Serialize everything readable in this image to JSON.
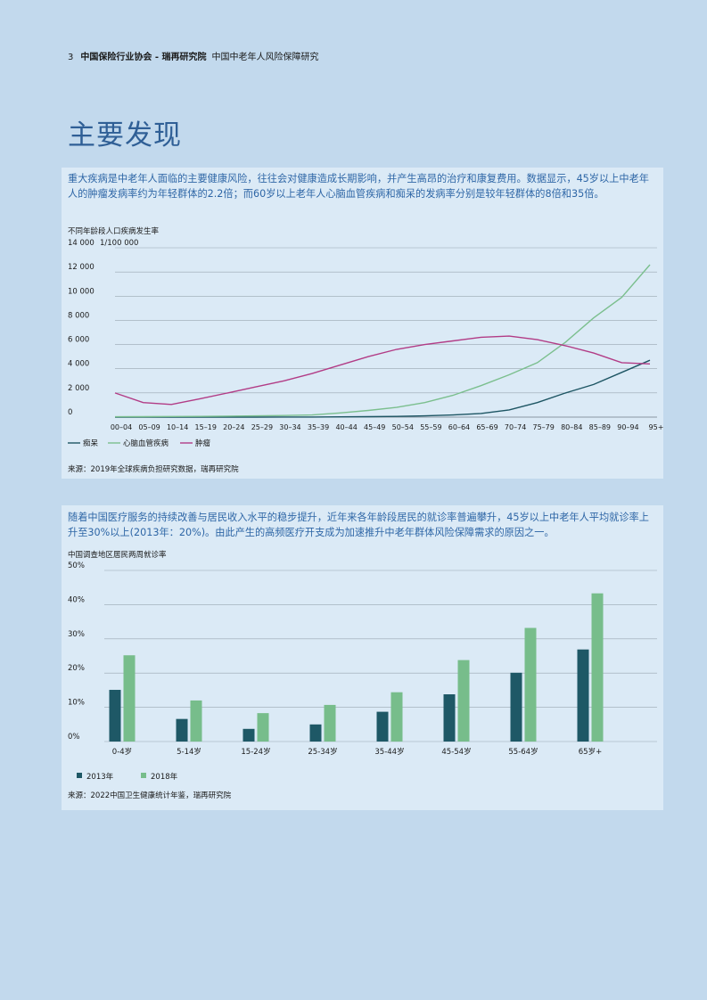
{
  "header": {
    "page_number": "3",
    "org": "中国保险行业协会 - 瑞再研究院",
    "report": "中国中老年人风险保障研究"
  },
  "title": "主要发现",
  "panel1": {
    "intro": "重大疾病是中老年人面临的主要健康风险，往往会对健康造成长期影响，并产生高昂的治疗和康复费用。数据显示，45岁以上中老年人的肿瘤发病率约为年轻群体的2.2倍；而60岁以上老年人心脑血管疾病和痴呆的发病率分别是较年轻群体的8倍和35倍。",
    "chart_title": "不同年龄段人口疾病发生率",
    "unit": "1/100 000",
    "source": "来源：2019年全球疾病负担研究数据，瑞再研究院"
  },
  "panel2": {
    "intro": "随着中国医疗服务的持续改善与居民收入水平的稳步提升，近年来各年龄段居民的就诊率普遍攀升，45岁以上中老年人平均就诊率上升至30%以上(2013年：20%)。由此产生的高频医疗开支成为加速推升中老年群体风险保障需求的原因之一。",
    "chart_title": "中国调查地区居民两周就诊率",
    "source": "来源：2022中国卫生健康统计年鉴，瑞再研究院"
  },
  "chart_data": [
    {
      "type": "line",
      "title": "不同年龄段人口疾病发生率",
      "ylabel": "1/100 000",
      "ylim": [
        0,
        14000
      ],
      "yticks": [
        0,
        2000,
        4000,
        6000,
        8000,
        10000,
        12000,
        14000
      ],
      "ytick_labels": [
        "0",
        "2 000",
        "4 000",
        "6 000",
        "8 000",
        "10 000",
        "12 000",
        "14 000"
      ],
      "grid": true,
      "legend": "bottom-left",
      "x": [
        "00–04",
        "05–09",
        "10–14",
        "15–19",
        "20–24",
        "25–29",
        "30–34",
        "35–39",
        "40–44",
        "45–49",
        "50–54",
        "55–59",
        "60–64",
        "65–69",
        "70–74",
        "75–79",
        "80–84",
        "85–89",
        "90–94",
        "95+"
      ],
      "series": [
        {
          "name": "痴呆",
          "color": "#1d5563",
          "values": [
            0,
            0,
            0,
            0,
            0,
            0,
            5,
            10,
            20,
            40,
            60,
            100,
            180,
            300,
            600,
            1200,
            2000,
            2700,
            3700,
            4700
          ]
        },
        {
          "name": "心脑血管疾病",
          "color": "#7bbf8e",
          "values": [
            30,
            40,
            50,
            60,
            80,
            100,
            130,
            180,
            350,
            550,
            800,
            1200,
            1800,
            2600,
            3500,
            4500,
            6200,
            8200,
            9900,
            12600
          ]
        },
        {
          "name": "肿瘤",
          "color": "#b23c86",
          "values": [
            2000,
            1200,
            1050,
            1500,
            2000,
            2500,
            3000,
            3600,
            4300,
            5000,
            5600,
            6000,
            6300,
            6600,
            6700,
            6400,
            5900,
            5300,
            4500,
            4400
          ]
        }
      ]
    },
    {
      "type": "bar",
      "title": "中国调查地区居民两周就诊率",
      "ylim": [
        0,
        50
      ],
      "yticks": [
        0,
        10,
        20,
        30,
        40,
        50
      ],
      "ytick_labels": [
        "0%",
        "10%",
        "20%",
        "30%",
        "40%",
        "50%"
      ],
      "grid": true,
      "legend": "bottom-left",
      "categories": [
        "0-4岁",
        "5-14岁",
        "15-24岁",
        "25-34岁",
        "35-44岁",
        "45-54岁",
        "55-64岁",
        "65岁+"
      ],
      "series": [
        {
          "name": "2013年",
          "color": "#1e5866",
          "values": [
            15.1,
            6.6,
            3.7,
            5.0,
            8.7,
            13.8,
            20.1,
            26.9
          ]
        },
        {
          "name": "2018年",
          "color": "#77bd8b",
          "values": [
            25.2,
            12.0,
            8.3,
            10.7,
            14.4,
            23.8,
            33.2,
            43.3
          ]
        }
      ]
    }
  ]
}
